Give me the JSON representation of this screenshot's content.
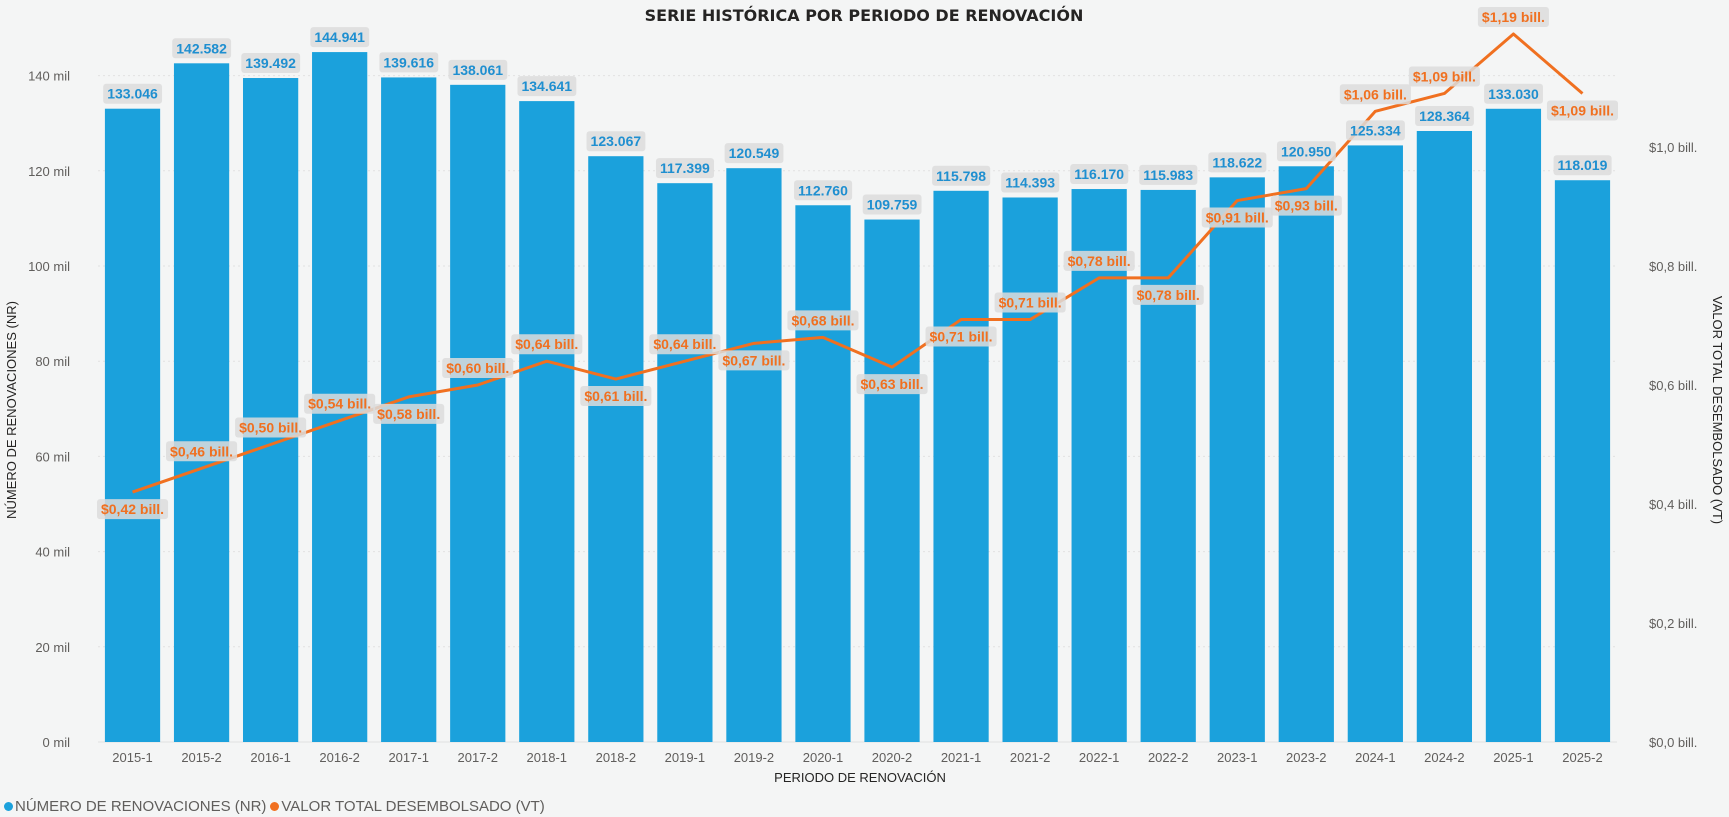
{
  "chart_data": {
    "type": "bar",
    "title": "SERIE HISTÓRICA POR PERIODO DE RENOVACIÓN",
    "xlabel": "PERIODO DE RENOVACIÓN",
    "ylabel": "NÚMERO DE RENOVACIONES (NR)",
    "y2label": "VALOR TOTAL DESEMBOLSADO (VT)",
    "categories": [
      "2015-1",
      "2015-2",
      "2016-1",
      "2016-2",
      "2017-1",
      "2017-2",
      "2018-1",
      "2018-2",
      "2019-1",
      "2019-2",
      "2020-1",
      "2020-2",
      "2021-1",
      "2021-2",
      "2022-1",
      "2022-2",
      "2023-1",
      "2023-2",
      "2024-1",
      "2024-2",
      "2025-1",
      "2025-2"
    ],
    "ylim": [
      0,
      150000
    ],
    "y2lim": [
      0,
      1.2
    ],
    "yticks": [
      "0 mil",
      "20 mil",
      "40 mil",
      "60 mil",
      "80 mil",
      "100 mil",
      "120 mil",
      "140 mil"
    ],
    "y2ticks": [
      "$0,0 bill.",
      "$0,2 bill.",
      "$0,4 bill.",
      "$0,6 bill.",
      "$0,8 bill.",
      "$1,0 bill."
    ],
    "grid": true,
    "legend_placement": "bottom-left",
    "series": [
      {
        "name": "NÚMERO DE RENOVACIONES (NR)",
        "type": "bar",
        "color": "#1ba1dc",
        "values": [
          133046,
          142582,
          139492,
          144941,
          139616,
          138061,
          134641,
          123067,
          117399,
          120549,
          112760,
          109759,
          115798,
          114393,
          116170,
          115983,
          118622,
          120950,
          125334,
          128364,
          133030,
          118019
        ],
        "labels": [
          "133.046",
          "142.582",
          "139.492",
          "144.941",
          "139.616",
          "138.061",
          "134.641",
          "123.067",
          "117.399",
          "120.549",
          "112.760",
          "109.759",
          "115.798",
          "114.393",
          "116.170",
          "115.983",
          "118.622",
          "120.950",
          "125.334",
          "128.364",
          "133.030",
          "118.019"
        ]
      },
      {
        "name": "VALOR TOTAL DESEMBOLSADO (VT)",
        "type": "line",
        "axis": "right",
        "color": "#f07020",
        "values": [
          0.42,
          0.46,
          0.5,
          0.54,
          0.58,
          0.6,
          0.64,
          0.61,
          0.64,
          0.67,
          0.68,
          0.63,
          0.71,
          0.71,
          0.78,
          0.78,
          0.91,
          0.93,
          1.06,
          1.09,
          1.19,
          1.09
        ],
        "labels": [
          "$0,42 bill.",
          "$0,46 bill.",
          "$0,50 bill.",
          "$0,54 bill.",
          "$0,58 bill.",
          "$0,60 bill.",
          "$0,64 bill.",
          "$0,61 bill.",
          "$0,64 bill.",
          "$0,67 bill.",
          "$0,68 bill.",
          "$0,63 bill.",
          "$0,71 bill.",
          "$0,71 bill.",
          "$0,78 bill.",
          "$0,78 bill.",
          "$0,91 bill.",
          "$0,93 bill.",
          "$1,06 bill.",
          "$1,09 bill.",
          "$1,19 bill.",
          "$1,09 bill."
        ],
        "label_position": [
          "below",
          "above",
          "above",
          "above",
          "below",
          "above",
          "above",
          "below",
          "above",
          "below",
          "above",
          "below",
          "below",
          "above",
          "above",
          "below",
          "below",
          "below",
          "above",
          "above",
          "above",
          "below"
        ]
      }
    ]
  }
}
